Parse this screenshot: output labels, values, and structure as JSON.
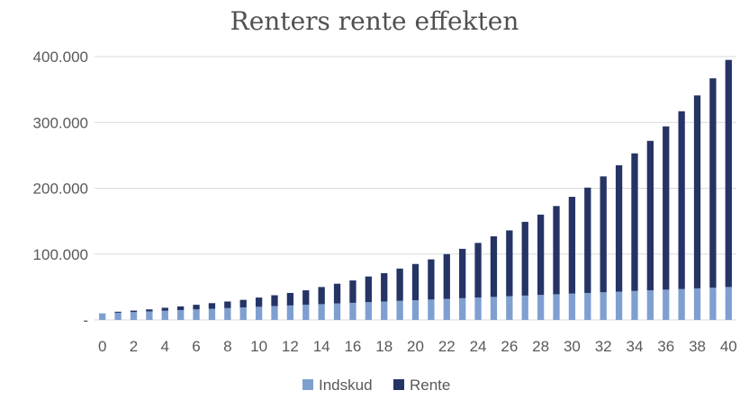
{
  "chart_data": {
    "type": "bar",
    "stacked": true,
    "title": "Renters rente effekten",
    "xlabel": "",
    "ylabel": "",
    "ylim": [
      0,
      400000
    ],
    "y_ticks": [
      {
        "value": 0,
        "label": "-"
      },
      {
        "value": 100000,
        "label": "100.000"
      },
      {
        "value": 200000,
        "label": "200.000"
      },
      {
        "value": 300000,
        "label": "300.000"
      },
      {
        "value": 400000,
        "label": "400.000"
      }
    ],
    "x_tick_labels": [
      "0",
      "2",
      "4",
      "6",
      "8",
      "10",
      "12",
      "14",
      "16",
      "18",
      "20",
      "22",
      "24",
      "26",
      "28",
      "30",
      "32",
      "34",
      "36",
      "38",
      "40"
    ],
    "categories": [
      "0",
      "1",
      "2",
      "3",
      "4",
      "5",
      "6",
      "7",
      "8",
      "9",
      "10",
      "11",
      "12",
      "13",
      "14",
      "15",
      "16",
      "17",
      "18",
      "19",
      "20",
      "21",
      "22",
      "23",
      "24",
      "25",
      "26",
      "27",
      "28",
      "29",
      "30",
      "31",
      "32",
      "33",
      "34",
      "35",
      "36",
      "37",
      "38",
      "39",
      "40"
    ],
    "series": [
      {
        "name": "Indskud",
        "color": "#7f9fd1",
        "values": [
          10000,
          11000,
          12000,
          13000,
          14000,
          15000,
          16000,
          17000,
          18000,
          19000,
          20000,
          21000,
          22000,
          23000,
          24000,
          25000,
          26000,
          27000,
          28000,
          29000,
          30000,
          31000,
          32000,
          33000,
          34000,
          35000,
          36000,
          37000,
          38000,
          39000,
          40000,
          41000,
          42000,
          43000,
          44000,
          45000,
          46000,
          47000,
          48000,
          49000,
          50000
        ]
      },
      {
        "name": "Rente",
        "color": "#253465",
        "values": [
          0,
          1500,
          2200,
          3000,
          4500,
          5500,
          7000,
          8500,
          10000,
          11500,
          14000,
          16500,
          19000,
          22000,
          26000,
          30000,
          34000,
          39000,
          43000,
          49000,
          55000,
          61000,
          68000,
          75000,
          83000,
          92000,
          100000,
          112000,
          122000,
          134000,
          147000,
          160000,
          176000,
          192000,
          209000,
          227000,
          248000,
          270000,
          293000,
          318000,
          345000
        ]
      }
    ],
    "legend_position": "bottom",
    "grid": "horizontal"
  }
}
